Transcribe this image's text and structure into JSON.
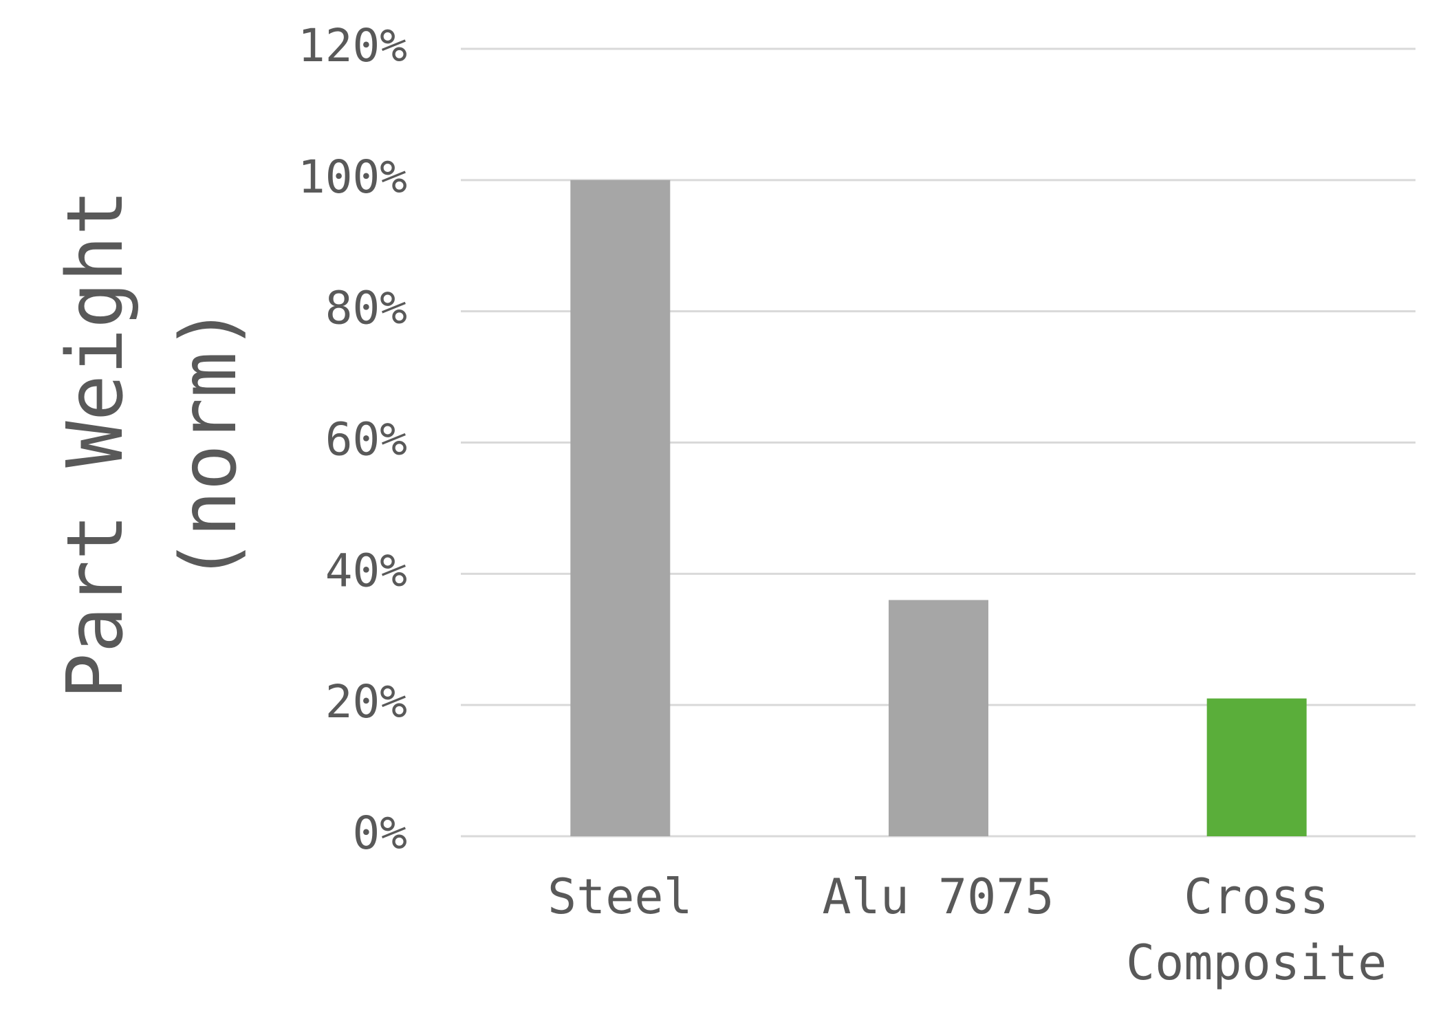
{
  "chart_data": {
    "type": "bar",
    "y_label": "Part Weight (norm)",
    "categories": [
      "Steel",
      "Alu 7075",
      "Cross Composite"
    ],
    "values": [
      100,
      36,
      21
    ],
    "colors": [
      "#a6a6a6",
      "#a6a6a6",
      "#5aae3a"
    ],
    "ylim": [
      0,
      120
    ],
    "yticks": [
      {
        "value": 0,
        "label": "0%"
      },
      {
        "value": 20,
        "label": "20%"
      },
      {
        "value": 40,
        "label": "40%"
      },
      {
        "value": 60,
        "label": "60%"
      },
      {
        "value": 80,
        "label": "80%"
      },
      {
        "value": 100,
        "label": "100%"
      },
      {
        "value": 120,
        "label": "120%"
      }
    ],
    "grid": true
  }
}
